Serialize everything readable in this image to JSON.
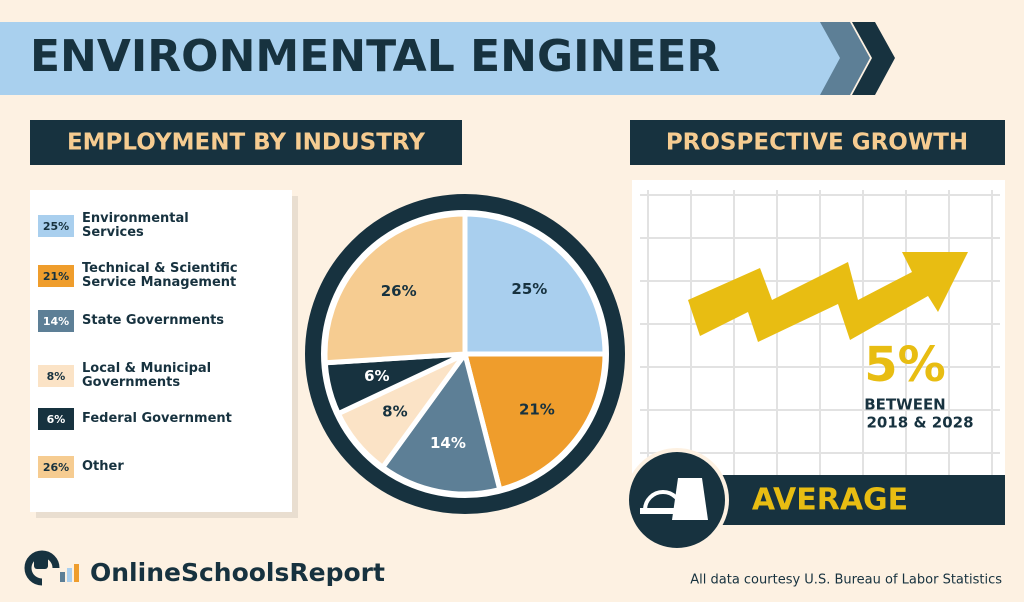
{
  "header": {
    "title": "ENVIRONMENTAL ENGINEER"
  },
  "left_heading": "EMPLOYMENT BY INDUSTRY",
  "right_heading": "PROSPECTIVE GROWTH",
  "growth": {
    "rate": "5%",
    "line1": "BETWEEN",
    "line2": "2018 & 2028",
    "verdict": "AVERAGE"
  },
  "footer": {
    "brand": "OnlineSchoolsReport",
    "credit": "All data courtesy U.S. Bureau of Labor Statistics"
  },
  "chart_data": {
    "type": "pie",
    "categories": [
      "Environmental Services",
      "Technical & Scientific Service Management",
      "State Governments",
      "Local & Municipal Governments",
      "Federal Government",
      "Other"
    ],
    "values": [
      25,
      21,
      14,
      8,
      6,
      26
    ],
    "value_labels": [
      "25%",
      "21%",
      "14%",
      "8%",
      "6%",
      "26%"
    ],
    "colors": [
      "#a9cfee",
      "#ef9d2c",
      "#5d7f96",
      "#fbe3c6",
      "#17323f",
      "#f6cc91"
    ]
  }
}
